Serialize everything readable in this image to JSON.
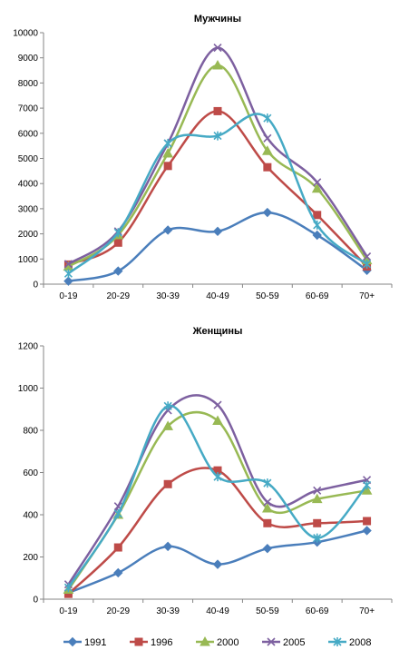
{
  "colors": {
    "1991": "#4a7ebb",
    "1996": "#be4b48",
    "2000": "#98b954",
    "2005": "#7d60a0",
    "2008": "#46aac5"
  },
  "chart_data": [
    {
      "type": "line",
      "title": "Мужчины",
      "categories": [
        "0-19",
        "20-29",
        "30-39",
        "40-49",
        "50-59",
        "60-69",
        "70+"
      ],
      "ylim": [
        0,
        10000
      ],
      "yticks": [
        0,
        1000,
        2000,
        3000,
        4000,
        5000,
        6000,
        7000,
        8000,
        9000,
        10000
      ],
      "grid": false,
      "smooth": true,
      "series": [
        {
          "name": "1991",
          "marker": "diamond",
          "values": [
            120,
            520,
            2150,
            2100,
            2850,
            1950,
            550
          ]
        },
        {
          "name": "1996",
          "marker": "square",
          "values": [
            780,
            1650,
            4700,
            6880,
            4650,
            2750,
            700
          ]
        },
        {
          "name": "2000",
          "marker": "triangle",
          "values": [
            700,
            1950,
            5200,
            8700,
            5300,
            3800,
            950
          ]
        },
        {
          "name": "2005",
          "marker": "x",
          "values": [
            800,
            2100,
            5600,
            9400,
            5800,
            4050,
            1100
          ]
        },
        {
          "name": "2008",
          "marker": "asterisk",
          "values": [
            420,
            2050,
            5600,
            5900,
            6600,
            2350,
            800
          ]
        }
      ]
    },
    {
      "type": "line",
      "title": "Женщины",
      "categories": [
        "0-19",
        "20-29",
        "30-39",
        "40-49",
        "50-59",
        "60-69",
        "70+"
      ],
      "ylim": [
        0,
        1200
      ],
      "yticks": [
        0,
        200,
        400,
        600,
        800,
        1000,
        1200
      ],
      "grid": false,
      "smooth": true,
      "legend": "bottom",
      "series": [
        {
          "name": "1991",
          "marker": "diamond",
          "values": [
            30,
            125,
            250,
            165,
            240,
            270,
            325
          ]
        },
        {
          "name": "1996",
          "marker": "square",
          "values": [
            25,
            245,
            545,
            610,
            360,
            360,
            370
          ]
        },
        {
          "name": "2000",
          "marker": "triangle",
          "values": [
            45,
            400,
            820,
            845,
            430,
            475,
            515
          ]
        },
        {
          "name": "2005",
          "marker": "x",
          "values": [
            70,
            440,
            895,
            920,
            460,
            515,
            565
          ]
        },
        {
          "name": "2008",
          "marker": "asterisk",
          "values": [
            55,
            405,
            915,
            580,
            550,
            290,
            540
          ]
        }
      ]
    }
  ]
}
